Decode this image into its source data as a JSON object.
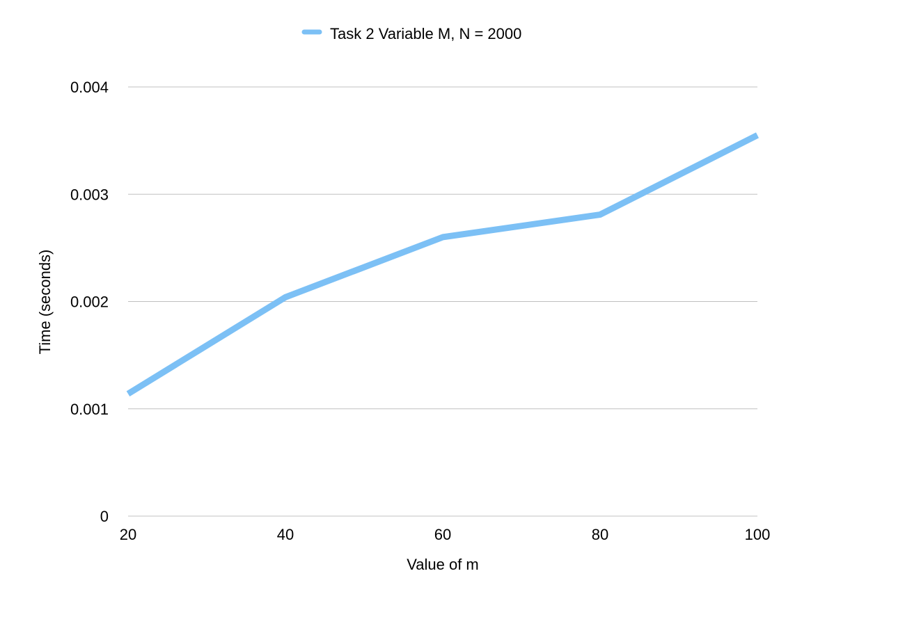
{
  "chart_data": {
    "type": "line",
    "title": "",
    "xlabel": "Value of m",
    "ylabel": "Time (seconds)",
    "x": [
      20,
      40,
      60,
      80,
      100
    ],
    "x_tick_labels": [
      "20",
      "40",
      "60",
      "80",
      "100"
    ],
    "y_tick_labels": [
      "0",
      "0.001",
      "0.002",
      "0.003",
      "0.004"
    ],
    "y_ticks": [
      0,
      0.001,
      0.002,
      0.003,
      0.004
    ],
    "xlim": [
      20,
      100
    ],
    "ylim": [
      0,
      0.004
    ],
    "grid": true,
    "legend_position": "top-center",
    "series": [
      {
        "name": "Task 2 Variable M, N = 2000",
        "color": "#7cc0f5",
        "values": [
          0.00114,
          0.00204,
          0.0026,
          0.00281,
          0.00355
        ]
      }
    ]
  }
}
